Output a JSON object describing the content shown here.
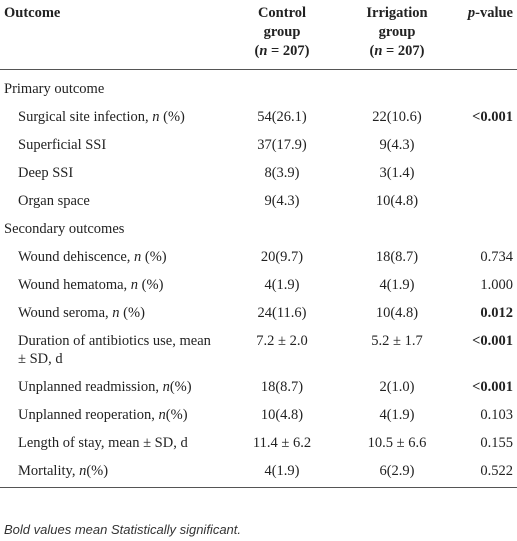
{
  "header": {
    "columns": [
      [
        [
          "Outcome"
        ]
      ],
      [
        [
          "Control"
        ],
        [
          "group"
        ],
        [
          "(",
          {
            "text": "n",
            "italic": true
          },
          " = 207)"
        ]
      ],
      [
        [
          "Irrigation"
        ],
        [
          "group"
        ],
        [
          "(",
          {
            "text": "n",
            "italic": true
          },
          " = 207)"
        ]
      ],
      [
        [
          {
            "text": "p",
            "italic": true
          },
          "-value"
        ]
      ]
    ]
  },
  "rows": [
    {
      "section": "Primary outcome"
    },
    {
      "label": [
        "Surgical site infection, ",
        {
          "text": "n",
          "italic": true
        },
        " (%)"
      ],
      "control": "54(26.1)",
      "irrigation": "22(10.6)",
      "p": "<0.001",
      "p_bold": true
    },
    {
      "label": [
        "Superficial SSI"
      ],
      "control": "37(17.9)",
      "irrigation": "9(4.3)"
    },
    {
      "label": [
        "Deep SSI"
      ],
      "control": "8(3.9)",
      "irrigation": "3(1.4)"
    },
    {
      "label": [
        "Organ space"
      ],
      "control": "9(4.3)",
      "irrigation": "10(4.8)"
    },
    {
      "section": "Secondary outcomes"
    },
    {
      "label": [
        "Wound dehiscence, ",
        {
          "text": "n",
          "italic": true
        },
        " (%)"
      ],
      "control": "20(9.7)",
      "irrigation": "18(8.7)",
      "p": "0.734",
      "p_bold": false
    },
    {
      "label": [
        "Wound hematoma, ",
        {
          "text": "n",
          "italic": true
        },
        " (%)"
      ],
      "control": "4(1.9)",
      "irrigation": "4(1.9)",
      "p": "1.000",
      "p_bold": false
    },
    {
      "label": [
        "Wound seroma, ",
        {
          "text": "n",
          "italic": true
        },
        " (%)"
      ],
      "control": "24(11.6)",
      "irrigation": "10(4.8)",
      "p": "0.012",
      "p_bold": true
    },
    {
      "label": [
        "Duration of antibiotics use, mean ± SD, d"
      ],
      "control": "7.2 ± 2.0",
      "irrigation": "5.2 ± 1.7",
      "p": "<0.001",
      "p_bold": true
    },
    {
      "label": [
        "Unplanned readmission, ",
        {
          "text": "n",
          "italic": true
        },
        "(%)"
      ],
      "control": "18(8.7)",
      "irrigation": "2(1.0)",
      "p": "<0.001",
      "p_bold": true
    },
    {
      "label": [
        "Unplanned reoperation, ",
        {
          "text": "n",
          "italic": true
        },
        "(%)"
      ],
      "control": "10(4.8)",
      "irrigation": "4(1.9)",
      "p": "0.103",
      "p_bold": false
    },
    {
      "label": [
        "Length of stay, mean ± SD, d"
      ],
      "control": "11.4 ± 6.2",
      "irrigation": "10.5 ± 6.6",
      "p": "0.155",
      "p_bold": false
    },
    {
      "label": [
        "Mortality, ",
        {
          "text": "n",
          "italic": true
        },
        "(%)"
      ],
      "control": "4(1.9)",
      "irrigation": "6(2.9)",
      "p": "0.522",
      "p_bold": false
    }
  ],
  "footnote": "Bold values mean Statistically significant."
}
